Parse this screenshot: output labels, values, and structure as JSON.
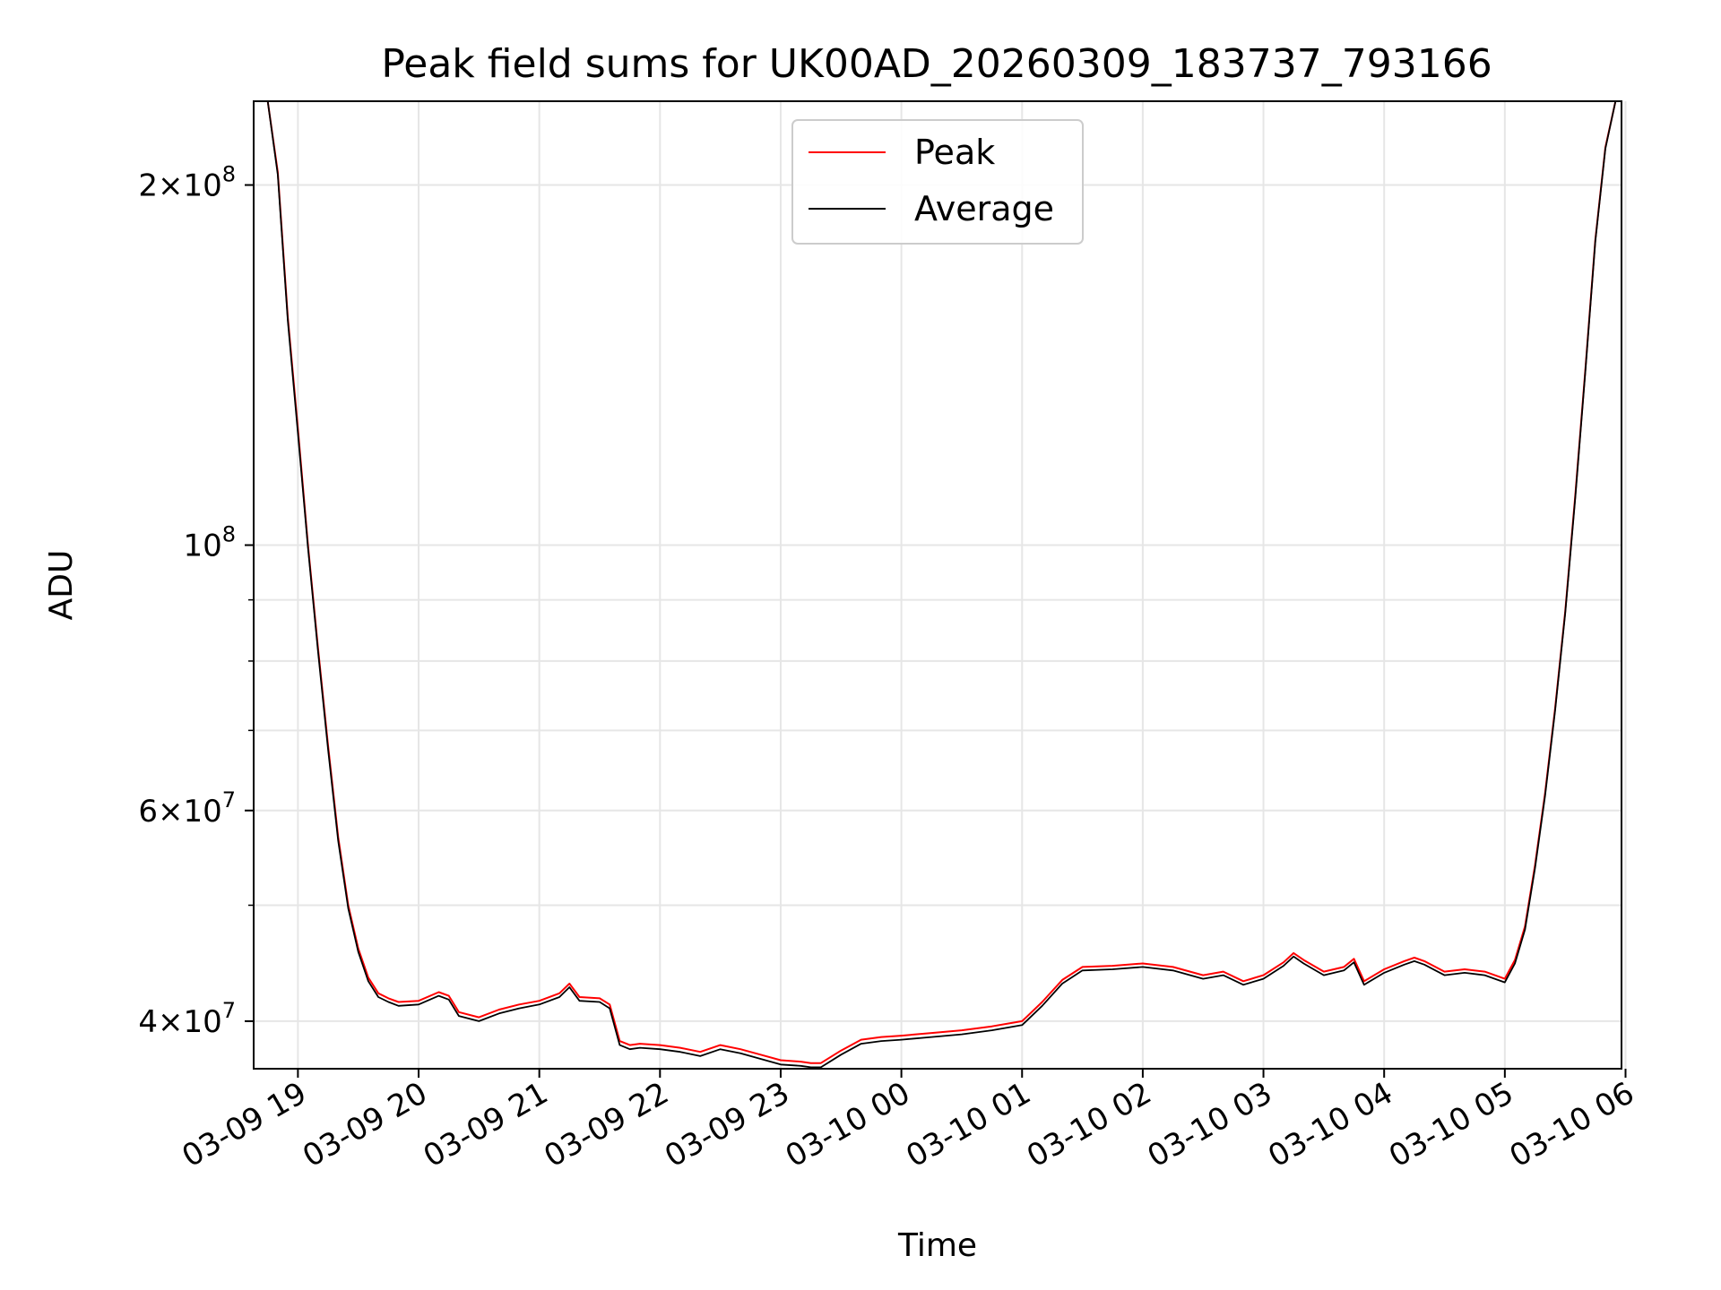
{
  "chart_data": {
    "type": "line",
    "title": "Peak field sums for UK00AD_20260309_183737_793166",
    "xlabel": "Time",
    "ylabel": "ADU",
    "yscale": "log",
    "ylim": [
      36500000,
      235000000
    ],
    "xlim": [
      "03-09 18:38",
      "03-10 05:58"
    ],
    "grid": true,
    "legend": {
      "placement": "upper-center"
    },
    "x_ticks": [
      "03-09 19",
      "03-09 20",
      "03-09 21",
      "03-09 22",
      "03-09 23",
      "03-10 00",
      "03-10 01",
      "03-10 02",
      "03-10 03",
      "03-10 04",
      "03-10 05",
      "03-10 06"
    ],
    "y_ticks": [
      {
        "value": 200000000,
        "mantissa": "2",
        "exponent": "8"
      },
      {
        "value": 100000000,
        "mantissa": "",
        "exponent": "8"
      },
      {
        "value": 60000000,
        "mantissa": "6",
        "exponent": "7"
      },
      {
        "value": 40000000,
        "mantissa": "4",
        "exponent": "7"
      }
    ],
    "x": [
      "03-09 18:45",
      "03-09 18:50",
      "03-09 18:55",
      "03-09 19:00",
      "03-09 19:05",
      "03-09 19:10",
      "03-09 19:15",
      "03-09 19:20",
      "03-09 19:25",
      "03-09 19:30",
      "03-09 19:35",
      "03-09 19:40",
      "03-09 19:45",
      "03-09 19:50",
      "03-09 20:00",
      "03-09 20:10",
      "03-09 20:15",
      "03-09 20:20",
      "03-09 20:30",
      "03-09 20:40",
      "03-09 20:50",
      "03-09 21:00",
      "03-09 21:10",
      "03-09 21:15",
      "03-09 21:20",
      "03-09 21:30",
      "03-09 21:35",
      "03-09 21:40",
      "03-09 21:45",
      "03-09 21:50",
      "03-09 22:00",
      "03-09 22:10",
      "03-09 22:20",
      "03-09 22:30",
      "03-09 22:40",
      "03-09 22:50",
      "03-09 23:00",
      "03-09 23:10",
      "03-09 23:15",
      "03-09 23:20",
      "03-09 23:30",
      "03-09 23:40",
      "03-09 23:50",
      "03-10 00:00",
      "03-10 00:15",
      "03-10 00:30",
      "03-10 00:45",
      "03-10 01:00",
      "03-10 01:10",
      "03-10 01:20",
      "03-10 01:30",
      "03-10 01:45",
      "03-10 02:00",
      "03-10 02:15",
      "03-10 02:30",
      "03-10 02:40",
      "03-10 02:50",
      "03-10 03:00",
      "03-10 03:10",
      "03-10 03:15",
      "03-10 03:20",
      "03-10 03:30",
      "03-10 03:40",
      "03-10 03:45",
      "03-10 03:50",
      "03-10 04:00",
      "03-10 04:10",
      "03-10 04:15",
      "03-10 04:20",
      "03-10 04:30",
      "03-10 04:40",
      "03-10 04:50",
      "03-10 05:00",
      "03-10 05:05",
      "03-10 05:10",
      "03-10 05:15",
      "03-10 05:20",
      "03-10 05:25",
      "03-10 05:30",
      "03-10 05:35",
      "03-10 05:40",
      "03-10 05:45",
      "03-10 05:50",
      "03-10 05:55"
    ],
    "series": [
      {
        "name": "Peak",
        "color": "#ff0000",
        "values": [
          235000000,
          205000000,
          155000000,
          125000000,
          100000000,
          82000000,
          68000000,
          57000000,
          50000000,
          46000000,
          43500000,
          42200000,
          41800000,
          41500000,
          41600000,
          42300000,
          42000000,
          40700000,
          40300000,
          40900000,
          41300000,
          41600000,
          42200000,
          43000000,
          41900000,
          41800000,
          41300000,
          38500000,
          38200000,
          38300000,
          38200000,
          38000000,
          37700000,
          38200000,
          37900000,
          37500000,
          37100000,
          37000000,
          36900000,
          36900000,
          37800000,
          38600000,
          38800000,
          38900000,
          39100000,
          39300000,
          39600000,
          40000000,
          41500000,
          43300000,
          44400000,
          44500000,
          44700000,
          44400000,
          43700000,
          44000000,
          43200000,
          43700000,
          44800000,
          45600000,
          45000000,
          44000000,
          44400000,
          45100000,
          43200000,
          44200000,
          44900000,
          45200000,
          44900000,
          44000000,
          44200000,
          44000000,
          43400000,
          45000000,
          48000000,
          54000000,
          62000000,
          73000000,
          88000000,
          110000000,
          140000000,
          180000000,
          215000000,
          235000000
        ]
      },
      {
        "name": "Average",
        "color": "#000000",
        "values": [
          235000000,
          204000000,
          154000000,
          124000000,
          99500000,
          81500000,
          67500000,
          56600000,
          49700000,
          45700000,
          43200000,
          41900000,
          41500000,
          41200000,
          41300000,
          42000000,
          41700000,
          40400000,
          40000000,
          40600000,
          41000000,
          41300000,
          41900000,
          42700000,
          41600000,
          41500000,
          41000000,
          38200000,
          37900000,
          38000000,
          37900000,
          37700000,
          37400000,
          37900000,
          37600000,
          37200000,
          36800000,
          36700000,
          36600000,
          36600000,
          37500000,
          38300000,
          38500000,
          38600000,
          38800000,
          39000000,
          39300000,
          39700000,
          41200000,
          43000000,
          44100000,
          44200000,
          44400000,
          44100000,
          43400000,
          43700000,
          42900000,
          43400000,
          44500000,
          45300000,
          44700000,
          43700000,
          44100000,
          44800000,
          42900000,
          43900000,
          44600000,
          44900000,
          44600000,
          43700000,
          43900000,
          43700000,
          43100000,
          44700000,
          47700000,
          53700000,
          61700000,
          72700000,
          87700000,
          109500000,
          139500000,
          179500000,
          214500000,
          235000000
        ]
      }
    ]
  }
}
